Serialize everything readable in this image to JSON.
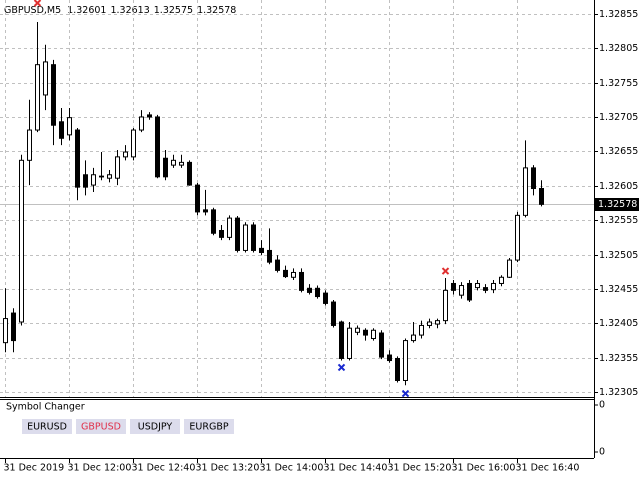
{
  "chart_data": {
    "type": "candlestick",
    "title": "GBPUSD,M5",
    "categories": [
      "31 Dec 2019",
      null,
      null,
      null,
      null,
      null,
      null,
      null,
      "31 Dec 12:00",
      null,
      null,
      null,
      null,
      null,
      null,
      null,
      "31 Dec 12:40",
      null,
      null,
      null,
      null,
      null,
      null,
      null,
      "31 Dec 13:20",
      null,
      null,
      null,
      null,
      null,
      null,
      null,
      "31 Dec 14:00",
      null,
      null,
      null,
      null,
      null,
      null,
      null,
      "31 Dec 14:40",
      null,
      null,
      null,
      null,
      null,
      null,
      null,
      "31 Dec 15:20",
      null,
      null,
      null,
      null,
      null,
      null,
      null,
      "31 Dec 16:00",
      null,
      null,
      null,
      null,
      null,
      null,
      null,
      "31 Dec 16:40",
      null,
      null,
      null
    ],
    "open": [
      1.32377,
      1.3242,
      1.32407,
      1.32642,
      1.32686,
      1.32737,
      1.32781,
      1.32698,
      1.32679,
      1.32686,
      1.32621,
      1.32606,
      1.32618,
      1.32616,
      1.32616,
      1.32647,
      1.32647,
      1.32686,
      1.32708,
      1.32705,
      1.32645,
      1.32635,
      1.32635,
      1.32639,
      1.32606,
      1.3257,
      1.3257,
      1.3254,
      1.3253,
      1.32558,
      1.32511,
      1.32548,
      1.32514,
      1.32511,
      1.32497,
      1.32482,
      1.32472,
      1.32479,
      1.32456,
      1.32456,
      1.32449,
      1.32436,
      1.32407,
      1.32354,
      1.32392,
      1.32395,
      1.32383,
      1.32391,
      1.32359,
      1.32354,
      1.32322,
      1.3238,
      1.32388,
      1.32402,
      1.32404,
      1.32409,
      1.32463,
      1.32446,
      1.32463,
      1.32457,
      1.32457,
      1.32454,
      1.32463,
      1.32472,
      1.32497,
      1.32562,
      1.32631,
      1.32601
    ],
    "high": [
      1.32456,
      1.32427,
      1.3265,
      1.3273,
      1.32843,
      1.3281,
      1.32788,
      1.32718,
      1.32718,
      1.32689,
      1.32642,
      1.32631,
      1.32654,
      1.32628,
      1.32657,
      1.32664,
      1.32689,
      1.32715,
      1.32712,
      1.32708,
      1.32657,
      1.3265,
      1.3265,
      1.32642,
      1.32609,
      1.32599,
      1.32573,
      1.32548,
      1.32562,
      1.32561,
      1.32552,
      1.32552,
      1.32526,
      1.32543,
      1.32504,
      1.32489,
      1.32485,
      1.32485,
      1.32462,
      1.3246,
      1.32453,
      1.32439,
      1.32409,
      1.32407,
      1.32402,
      1.32398,
      1.32398,
      1.32395,
      1.32366,
      1.32357,
      1.32383,
      1.32407,
      1.32409,
      1.32412,
      1.32412,
      1.32471,
      1.32468,
      1.32465,
      1.32468,
      1.32468,
      1.32462,
      1.32468,
      1.32475,
      1.325,
      1.32567,
      1.32671,
      1.32635,
      1.32613
    ],
    "low": [
      1.32363,
      1.32363,
      1.32402,
      1.32606,
      1.32683,
      1.32715,
      1.32664,
      1.32664,
      1.32671,
      1.32584,
      1.32591,
      1.32596,
      1.32613,
      1.3261,
      1.32606,
      1.32642,
      1.32642,
      1.32683,
      1.32701,
      1.32616,
      1.32613,
      1.32631,
      1.32631,
      1.32605,
      1.32562,
      1.32562,
      1.32533,
      1.32526,
      1.32526,
      1.32508,
      1.32508,
      1.32508,
      1.32504,
      1.32491,
      1.32479,
      1.32471,
      1.32468,
      1.3245,
      1.32447,
      1.32441,
      1.32431,
      1.32399,
      1.32351,
      1.32351,
      1.32388,
      1.3238,
      1.3238,
      1.32353,
      1.32348,
      1.32319,
      1.32315,
      1.32377,
      1.32383,
      1.32398,
      1.32398,
      1.32404,
      1.32447,
      1.32441,
      1.32436,
      1.32453,
      1.32449,
      1.32449,
      1.32459,
      1.32471,
      1.32494,
      1.32559,
      1.32591,
      1.32575
    ],
    "close": [
      1.32412,
      1.3238,
      1.32642,
      1.32686,
      1.32781,
      1.32785,
      1.32693,
      1.32674,
      1.32704,
      1.32603,
      1.32603,
      1.32621,
      1.32619,
      1.32621,
      1.32647,
      1.32654,
      1.32686,
      1.32705,
      1.32705,
      1.32618,
      1.32618,
      1.32642,
      1.32639,
      1.32606,
      1.32567,
      1.32567,
      1.32536,
      1.3253,
      1.32558,
      1.32511,
      1.32548,
      1.32511,
      1.32508,
      1.32494,
      1.32482,
      1.32473,
      1.32479,
      1.32453,
      1.3245,
      1.32444,
      1.32434,
      1.32402,
      1.32354,
      1.32398,
      1.32398,
      1.32388,
      1.32395,
      1.32356,
      1.32351,
      1.32322,
      1.3238,
      1.32388,
      1.32402,
      1.32407,
      1.32409,
      1.32453,
      1.32453,
      1.3246,
      1.32439,
      1.32463,
      1.32453,
      1.32463,
      1.32472,
      1.32497,
      1.32562,
      1.32631,
      1.32601,
      1.32578
    ],
    "sell_arrows": [
      null,
      null,
      null,
      null,
      1.32871,
      null,
      null,
      null,
      null,
      null,
      null,
      null,
      null,
      null,
      null,
      null,
      null,
      null,
      null,
      null,
      null,
      null,
      null,
      null,
      null,
      null,
      null,
      null,
      null,
      null,
      null,
      null,
      null,
      null,
      null,
      null,
      null,
      null,
      null,
      null,
      null,
      null,
      null,
      null,
      null,
      null,
      null,
      null,
      null,
      null,
      null,
      null,
      null,
      null,
      null,
      1.32481,
      null,
      null,
      null,
      null,
      null,
      null,
      null,
      null,
      null,
      null,
      null,
      null
    ],
    "buy_arrows": [
      null,
      null,
      null,
      null,
      null,
      null,
      null,
      null,
      null,
      null,
      null,
      null,
      null,
      null,
      null,
      null,
      null,
      null,
      null,
      null,
      null,
      null,
      null,
      null,
      null,
      null,
      null,
      null,
      null,
      null,
      null,
      null,
      null,
      null,
      null,
      null,
      null,
      null,
      null,
      null,
      null,
      null,
      1.32341,
      null,
      null,
      null,
      null,
      null,
      null,
      null,
      1.32303,
      null,
      null,
      null,
      null,
      null,
      null,
      null,
      null,
      null,
      null,
      null,
      null,
      null,
      null,
      null,
      null,
      null
    ],
    "sell_color": "#e03030",
    "buy_color": "#1a2ad0",
    "bull_color": "#ffffff",
    "bear_color": "#000000",
    "ylim": [
      1.32298,
      1.32875
    ],
    "yticks": [
      1.32855,
      1.32805,
      1.32755,
      1.32705,
      1.32655,
      1.32605,
      1.32555,
      1.32505,
      1.32455,
      1.32405,
      1.32355,
      1.32305
    ],
    "grid": true,
    "subwindow": {
      "title": "Symbol Changer",
      "buttons": [
        {
          "label": "EURUSD",
          "color": "#000000"
        },
        {
          "label": "GBPUSD",
          "color": "#e0304a"
        },
        {
          "label": "USDJPY",
          "color": "#000000"
        },
        {
          "label": "EURGBP",
          "color": "#000000"
        }
      ],
      "yticks": [
        0,
        0
      ]
    }
  }
}
